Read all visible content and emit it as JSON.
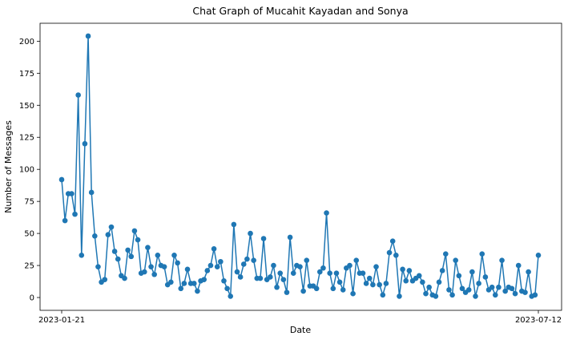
{
  "chart_data": {
    "type": "line",
    "title": "Chat Graph of Mucahit Kayadan and Sonya",
    "xlabel": "Date",
    "ylabel": "Number of Messages",
    "x_range": [
      "2023-01-21",
      "2023-07-12"
    ],
    "x_tick_labels": [
      "2023-01-21",
      "2023-07-12"
    ],
    "ylim": [
      -10,
      214
    ],
    "y_ticks": [
      0,
      25,
      50,
      75,
      100,
      125,
      150,
      175,
      200
    ],
    "grid": false,
    "marker": "circle",
    "color": "#1f77b4",
    "series": [
      {
        "values": [
          92,
          60,
          81,
          81,
          65,
          158,
          33,
          120,
          204,
          82,
          48,
          24,
          12,
          14,
          49,
          55,
          36,
          30,
          17,
          15,
          37,
          32,
          52,
          45,
          19,
          20,
          39,
          24,
          18,
          33,
          25,
          24,
          10,
          12,
          33,
          27,
          7,
          11,
          22,
          11,
          11,
          5,
          13,
          14,
          21,
          25,
          38,
          24,
          28,
          13,
          7,
          1,
          57,
          20,
          16,
          26,
          30,
          50,
          29,
          15,
          15,
          46,
          14,
          16,
          25,
          8,
          19,
          14,
          4,
          47,
          19,
          25,
          24,
          5,
          29,
          9,
          9,
          7,
          20,
          23,
          66,
          19,
          7,
          19,
          12,
          6,
          23,
          25,
          3,
          29,
          19,
          19,
          11,
          15,
          10,
          24,
          10,
          2,
          11,
          35,
          44,
          33,
          1,
          22,
          13,
          21,
          13,
          15,
          17,
          12,
          3,
          8,
          2,
          1,
          12,
          21,
          34,
          6,
          2,
          29,
          17,
          7,
          4,
          6,
          20,
          1,
          11,
          34,
          16,
          6,
          8,
          2,
          8,
          29,
          5,
          8,
          7,
          3,
          25,
          5,
          4,
          20,
          1,
          2,
          33
        ]
      }
    ]
  }
}
